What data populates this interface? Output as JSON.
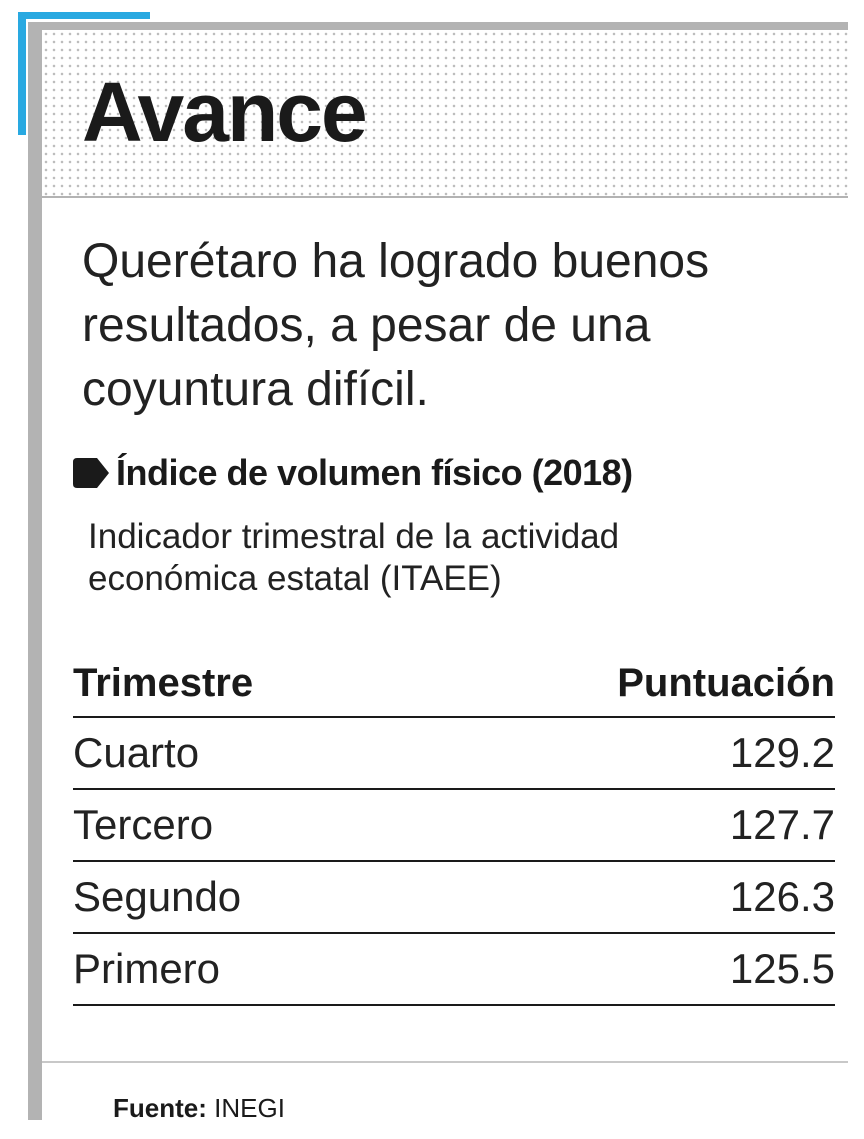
{
  "header": {
    "title": "Avance"
  },
  "intro": "Querétaro ha logrado buenos resultados, a pesar de una coyuntura difícil.",
  "section": {
    "title": "Índice de volumen físico (2018)",
    "subtitle": "Indicador trimestral de la actividad económica estatal (ITAEE)"
  },
  "table": {
    "columns": [
      "Trimestre",
      "Puntuación"
    ],
    "rows": [
      [
        "Cuarto",
        "129.2"
      ],
      [
        "Tercero",
        "127.7"
      ],
      [
        "Segundo",
        "126.3"
      ],
      [
        "Primero",
        "125.5"
      ]
    ]
  },
  "source": {
    "label": "Fuente:",
    "text": "INEGI"
  }
}
